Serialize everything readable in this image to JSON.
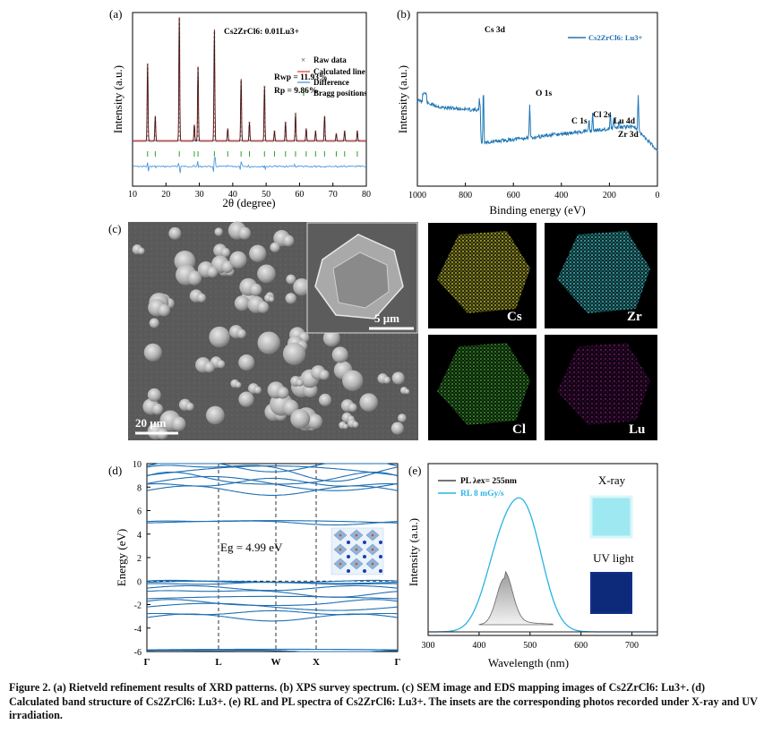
{
  "caption": "Figure 2. (a) Rietveld refinement results of XRD patterns. (b) XPS survey spectrum. (c) SEM image and EDS mapping images of Cs2ZrCl6: Lu3+. (d) Calculated band structure of Cs2ZrCl6: Lu3+. (e) RL and PL spectra of Cs2ZrCl6: Lu3+. The insets are the corresponding photos recorded under X-ray and UV irradiation.",
  "panels": {
    "a": {
      "label": "(a)",
      "sample_label": "Cs2ZrCl6: 0.01Lu3+",
      "legend": [
        "Raw data",
        "Calculated line",
        "Difference",
        "Bragg positions"
      ],
      "rwp": "Rwp = 11.93%",
      "rp": "Rp = 9.86%",
      "xlabel": "2θ (degree)",
      "ylabel": "Intensity (a.u.)"
    },
    "b": {
      "label": "(b)",
      "legend": "Cs2ZrCl6: Lu3+",
      "peaks": [
        "Cs 3d",
        "O 1s",
        "C 1s",
        "Cl 2s",
        "Lu 4d",
        "Zr 3d"
      ],
      "xlabel": "Binding energy (eV)",
      "ylabel": "Intensity (a.u.)"
    },
    "c": {
      "label": "(c)",
      "scalebar_main": "20 μm",
      "scalebar_inset": "5 μm",
      "maps": [
        {
          "element": "Cs",
          "color": "#c9c431"
        },
        {
          "element": "Zr",
          "color": "#3fc3c8"
        },
        {
          "element": "Cl",
          "color": "#3f9a35"
        },
        {
          "element": "Lu",
          "color": "#a5279d"
        }
      ]
    },
    "d": {
      "label": "(d)",
      "gap_label": "Eg = 4.99 eV",
      "ylabel": "Energy (eV)",
      "kpoints": [
        "Γ",
        "L",
        "W",
        "X",
        "Γ"
      ]
    },
    "e": {
      "label": "(e)",
      "legend": [
        "PL λex= 255nm",
        "RL 8 mGy/s"
      ],
      "xlabel": "Wavelength (nm)",
      "ylabel": "Intensity (a.u.)",
      "inset_xray": "X-ray",
      "inset_uv": "UV light"
    }
  },
  "chart_data": [
    {
      "type": "line",
      "title": "",
      "xlabel": "2θ (degree)",
      "ylabel": "Intensity (a.u.)",
      "xlim": [
        10,
        80
      ],
      "x_ticks": [
        10,
        20,
        30,
        40,
        50,
        60,
        70,
        80
      ],
      "series": [
        {
          "name": "Raw data"
        },
        {
          "name": "Calculated line"
        },
        {
          "name": "Difference"
        },
        {
          "name": "Bragg positions"
        }
      ],
      "peaks_2theta": [
        14.5,
        16.8,
        24.0,
        28.5,
        29.6,
        34.5,
        38.5,
        42.5,
        45.0,
        49.5,
        52.5,
        55.8,
        58.8,
        62.0,
        64.8,
        67.5,
        71.0,
        73.5,
        77.3
      ],
      "peak_rel_intensity": [
        0.62,
        0.2,
        1.0,
        0.13,
        0.6,
        0.9,
        0.1,
        0.5,
        0.15,
        0.44,
        0.08,
        0.15,
        0.22,
        0.1,
        0.08,
        0.2,
        0.06,
        0.08,
        0.08
      ]
    },
    {
      "type": "line",
      "title": "",
      "xlabel": "Binding energy (eV)",
      "ylabel": "Intensity (a.u.)",
      "xlim": [
        1000,
        0
      ],
      "x_ticks": [
        1000,
        800,
        600,
        400,
        200,
        0
      ],
      "series": [
        {
          "name": "Cs2ZrCl6: Lu3+"
        }
      ],
      "peak_positions_eV": {
        "Cs 3d": 725,
        "O 1s": 532,
        "C 1s": 285,
        "Cl 2s": 270,
        "Lu 4d": 196,
        "Zr 3d": 182
      }
    },
    {
      "type": "line",
      "title": "",
      "ylabel": "Energy (eV)",
      "ylim": [
        -6,
        10
      ],
      "y_ticks": [
        -6,
        -4,
        -2,
        0,
        2,
        4,
        6,
        8,
        10
      ],
      "x_ticks": [
        "Γ",
        "L",
        "W",
        "X",
        "Γ"
      ],
      "band_gap_eV": 4.99
    },
    {
      "type": "line",
      "title": "",
      "xlabel": "Wavelength (nm)",
      "ylabel": "Intensity (a.u.)",
      "xlim": [
        300,
        750
      ],
      "x_ticks": [
        300,
        400,
        500,
        600,
        700
      ],
      "series": [
        {
          "name": "PL λex= 255nm",
          "peak_nm": 450
        },
        {
          "name": "RL 8 mGy/s",
          "peak_nm": 490
        }
      ]
    }
  ]
}
